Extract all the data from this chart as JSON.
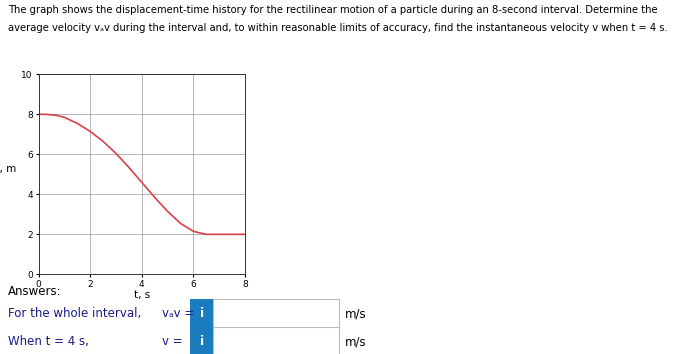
{
  "title_line1": "The graph shows the displacement-time history for the rectilinear motion of a particle during an 8-second interval. Determine the",
  "title_line2": "average velocity vₐv during the interval and, to within reasonable limits of accuracy, find the instantaneous velocity v when t = 4 s.",
  "xlabel": "t, s",
  "ylabel": "s, m",
  "xlim": [
    0,
    8
  ],
  "ylim": [
    0,
    10
  ],
  "xticks": [
    0,
    2,
    4,
    6,
    8
  ],
  "yticks": [
    0,
    2,
    4,
    6,
    8,
    10
  ],
  "curve_color": "#d9404a",
  "curve_t": [
    0,
    0.3,
    0.7,
    1.0,
    1.5,
    2.0,
    2.5,
    3.0,
    3.5,
    4.0,
    4.5,
    5.0,
    5.5,
    6.0,
    6.5,
    7.0,
    7.5,
    8.0
  ],
  "curve_s": [
    8.0,
    8.0,
    7.95,
    7.85,
    7.55,
    7.15,
    6.65,
    6.05,
    5.35,
    4.6,
    3.85,
    3.15,
    2.55,
    2.15,
    2.0,
    2.0,
    2.0,
    2.0
  ],
  "answers_text": "Answers:",
  "row1_label": "For the whole interval,",
  "row1_var": "vₐv =",
  "row2_label": "When t = 4 s,",
  "row2_var": "v =",
  "unit": "m/s",
  "button_color": "#1a7bbf",
  "button_text": "i",
  "bg_color": "#ffffff",
  "grid_color": "#999999",
  "text_color": "#1a1a8c",
  "title_color": "#000000",
  "answers_color": "#000000",
  "fig_width": 7.0,
  "fig_height": 3.54,
  "title_fontsize": 7.2,
  "label_fontsize": 7.5,
  "answers_fontsize": 8.5,
  "row_fontsize": 8.5
}
